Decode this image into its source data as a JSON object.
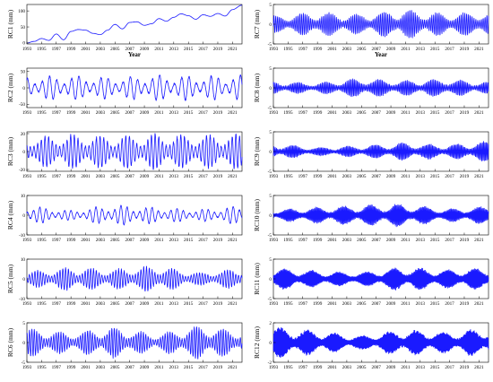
{
  "chart_data": [
    {
      "id": "RC1",
      "type": "line",
      "ylabel": "RC1 (mm)",
      "xlabel": "Year",
      "xlim": [
        1993,
        2022.3
      ],
      "ylim": [
        -3,
        120
      ],
      "yticks": [
        0,
        50,
        100
      ],
      "xticks": [
        "1993",
        "1995",
        "1997",
        "1999",
        "2001",
        "2003",
        "2005",
        "2007",
        "2009",
        "2011",
        "2013",
        "2015",
        "2017",
        "2019",
        "2021"
      ],
      "x": [
        1993,
        1994,
        1995,
        1996,
        1997,
        1998,
        1999,
        2000,
        2001,
        2002,
        2003,
        2004,
        2005,
        2006,
        2007,
        2008,
        2009,
        2010,
        2011,
        2012,
        2013,
        2014,
        2015,
        2016,
        2017,
        2018,
        2019,
        2020,
        2021,
        2022.3
      ],
      "y": [
        0,
        5,
        14,
        8,
        28,
        10,
        36,
        42,
        40,
        30,
        26,
        40,
        58,
        44,
        64,
        66,
        55,
        60,
        76,
        68,
        80,
        91,
        85,
        74,
        88,
        83,
        92,
        84,
        104,
        118
      ]
    },
    {
      "id": "RC2",
      "type": "line",
      "ylabel": "RC2 (mm)",
      "xlabel": "",
      "xlim": [
        1993,
        2022.3
      ],
      "ylim": [
        -60,
        60
      ],
      "yticks": [
        -50,
        0,
        50
      ],
      "xticks": [
        "1993",
        "1995",
        "1997",
        "1999",
        "2001",
        "2003",
        "2005",
        "2007",
        "2009",
        "2011",
        "2013",
        "2015",
        "2017",
        "2019",
        "2021"
      ],
      "signal": {
        "amplitude": 38,
        "period_years": 1.0,
        "modulation": [
          0.9,
          1.0,
          0.85,
          1.05,
          0.95,
          1.0
        ]
      }
    },
    {
      "id": "RC3",
      "type": "line",
      "ylabel": "RC3 (mm)",
      "xlabel": "",
      "xlim": [
        1993,
        2022.3
      ],
      "ylim": [
        -22,
        22
      ],
      "yticks": [
        -20,
        0,
        20
      ],
      "xticks": [
        "1993",
        "1995",
        "1997",
        "1999",
        "2001",
        "2003",
        "2005",
        "2007",
        "2009",
        "2011",
        "2013",
        "2015",
        "2017",
        "2019",
        "2021"
      ],
      "signal": {
        "amplitude": 19,
        "period_years": 0.5,
        "modulation": [
          0.8,
          1.0,
          0.9,
          1.05,
          0.95,
          1.0
        ]
      }
    },
    {
      "id": "RC4",
      "type": "line",
      "ylabel": "RC4 (mm)",
      "xlabel": "",
      "xlim": [
        1993,
        2022.3
      ],
      "ylim": [
        -10,
        10
      ],
      "yticks": [
        -10,
        0,
        10
      ],
      "xticks": [
        "1993",
        "1995",
        "1997",
        "1999",
        "2001",
        "2003",
        "2005",
        "2007",
        "2009",
        "2011",
        "2013",
        "2015",
        "2017",
        "2019",
        "2021"
      ],
      "signal": {
        "amplitude": 4,
        "period_years": 0.85,
        "modulation": [
          1.2,
          0.6,
          1.3,
          1.0,
          0.7,
          1.2
        ]
      }
    },
    {
      "id": "RC5",
      "type": "line",
      "ylabel": "RC5 (mm)",
      "xlabel": "",
      "xlim": [
        1993,
        2022.3
      ],
      "ylim": [
        -10,
        10
      ],
      "yticks": [
        -10,
        0,
        10
      ],
      "xticks": [
        "1993",
        "1995",
        "1997",
        "1999",
        "2001",
        "2003",
        "2005",
        "2007",
        "2009",
        "2011",
        "2013",
        "2015",
        "2017",
        "2019",
        "2021"
      ],
      "signal": {
        "amplitude": 6,
        "period_years": 0.38,
        "modulation": [
          0.6,
          1.0,
          0.8,
          1.1,
          0.5,
          0.9
        ]
      }
    },
    {
      "id": "RC6",
      "type": "line",
      "ylabel": "RC6 (mm)",
      "xlabel": "",
      "xlim": [
        1993,
        2022.3
      ],
      "ylim": [
        -5,
        5
      ],
      "yticks": [
        -5,
        0,
        5
      ],
      "xticks": [
        "1993",
        "1995",
        "1997",
        "1999",
        "2001",
        "2003",
        "2005",
        "2007",
        "2009",
        "2011",
        "2013",
        "2015",
        "2017",
        "2019",
        "2021"
      ],
      "signal": {
        "amplitude": 3.5,
        "period_years": 0.33,
        "modulation": [
          1.0,
          0.7,
          1.1,
          0.6,
          1.2,
          0.8
        ]
      }
    },
    {
      "id": "RC7",
      "type": "line",
      "ylabel": "RC7 (mm)",
      "xlabel": "Year",
      "xlim": [
        1993,
        2022.3
      ],
      "ylim": [
        -5,
        5
      ],
      "yticks": [
        -5,
        0,
        5
      ],
      "xticks": [
        "1993",
        "1995",
        "1997",
        "1999",
        "2001",
        "2003",
        "2005",
        "2007",
        "2009",
        "2011",
        "2013",
        "2015",
        "2017",
        "2019",
        "2021"
      ],
      "signal": {
        "amplitude": 3.0,
        "period_years": 0.25,
        "modulation": [
          0.7,
          1.0,
          0.8,
          1.2,
          0.9,
          1.0
        ]
      }
    },
    {
      "id": "RC8",
      "type": "line",
      "ylabel": "RC8 (mm)",
      "xlabel": "",
      "xlim": [
        1993,
        2022.3
      ],
      "ylim": [
        -5,
        5
      ],
      "yticks": [
        -5,
        0,
        5
      ],
      "xticks": [
        "1993",
        "1995",
        "1997",
        "1999",
        "2001",
        "2003",
        "2005",
        "2007",
        "2009",
        "2011",
        "2013",
        "2015",
        "2017",
        "2019",
        "2021"
      ],
      "signal": {
        "amplitude": 2.0,
        "period_years": 0.2,
        "modulation": [
          0.8,
          0.6,
          1.2,
          0.9,
          1.1,
          0.7
        ]
      }
    },
    {
      "id": "RC9",
      "type": "line",
      "ylabel": "RC9 (mm)",
      "xlabel": "",
      "xlim": [
        1993,
        2022.3
      ],
      "ylim": [
        -5,
        5
      ],
      "yticks": [
        -5,
        0,
        5
      ],
      "xticks": [
        "1993",
        "1995",
        "1997",
        "1999",
        "2001",
        "2003",
        "2005",
        "2007",
        "2009",
        "2011",
        "2013",
        "2015",
        "2017",
        "2019",
        "2021"
      ],
      "signal": {
        "amplitude": 2.0,
        "period_years": 0.17,
        "modulation": [
          1.0,
          0.5,
          0.7,
          1.1,
          0.8,
          1.3
        ]
      }
    },
    {
      "id": "RC10",
      "type": "line",
      "ylabel": "RC10 (mm)",
      "xlabel": "",
      "xlim": [
        1993,
        2022.3
      ],
      "ylim": [
        -5,
        5
      ],
      "yticks": [
        -5,
        0,
        5
      ],
      "xticks": [
        "1993",
        "1995",
        "1997",
        "1999",
        "2001",
        "2003",
        "2005",
        "2007",
        "2009",
        "2011",
        "2013",
        "2015",
        "2017",
        "2019",
        "2021"
      ],
      "signal": {
        "amplitude": 2.2,
        "period_years": 0.14,
        "modulation": [
          0.6,
          0.9,
          1.1,
          1.3,
          0.7,
          1.0
        ]
      }
    },
    {
      "id": "RC11",
      "type": "line",
      "ylabel": "RC11 (mm)",
      "xlabel": "",
      "xlim": [
        1993,
        2022.3
      ],
      "ylim": [
        -5,
        5
      ],
      "yticks": [
        -5,
        0,
        5
      ],
      "xticks": [
        "1993",
        "1995",
        "1997",
        "1999",
        "2001",
        "2003",
        "2005",
        "2007",
        "2009",
        "2011",
        "2013",
        "2015",
        "2017",
        "2019",
        "2021"
      ],
      "signal": {
        "amplitude": 2.5,
        "period_years": 0.12,
        "modulation": [
          1.1,
          0.8,
          0.6,
          1.2,
          0.9,
          1.1
        ]
      }
    },
    {
      "id": "RC12",
      "type": "line",
      "ylabel": "RC12 (mm)",
      "xlabel": "",
      "xlim": [
        1993,
        2022.3
      ],
      "ylim": [
        -2,
        2
      ],
      "yticks": [
        -2,
        0,
        2
      ],
      "xticks": [
        "1993",
        "1995",
        "1997",
        "1999",
        "2001",
        "2003",
        "2005",
        "2007",
        "2009",
        "2011",
        "2013",
        "2015",
        "2017",
        "2019",
        "2021"
      ],
      "signal": {
        "amplitude": 1.3,
        "period_years": 0.1,
        "modulation": [
          1.2,
          0.9,
          0.5,
          1.0,
          0.8,
          1.1
        ]
      }
    }
  ]
}
